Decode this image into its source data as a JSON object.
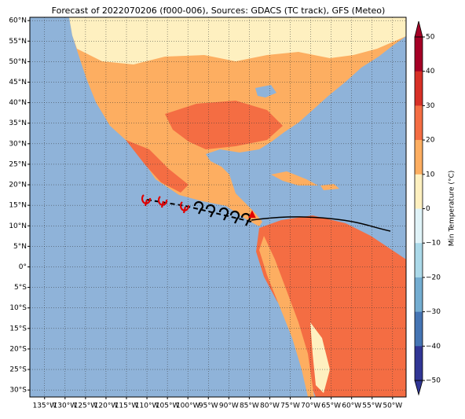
{
  "title": "Forecast of 2022070206 (f000-006), Sources: GDACS (TC track), GFS (Meteo)",
  "map": {
    "xlim": [
      -138.6,
      -46.7
    ],
    "ylim": [
      -31.7,
      60.8
    ],
    "yticks": [
      {
        "value": 60,
        "label": "60°N"
      },
      {
        "value": 55,
        "label": "55°N"
      },
      {
        "value": 50,
        "label": "50°N"
      },
      {
        "value": 45,
        "label": "45°N"
      },
      {
        "value": 40,
        "label": "40°N"
      },
      {
        "value": 35,
        "label": "35°N"
      },
      {
        "value": 30,
        "label": "30°N"
      },
      {
        "value": 25,
        "label": "25°N"
      },
      {
        "value": 20,
        "label": "20°N"
      },
      {
        "value": 15,
        "label": "15°N"
      },
      {
        "value": 10,
        "label": "10°N"
      },
      {
        "value": 5,
        "label": "5°N"
      },
      {
        "value": 0,
        "label": "0°"
      },
      {
        "value": -5,
        "label": "5°S"
      },
      {
        "value": -10,
        "label": "10°S"
      },
      {
        "value": -15,
        "label": "15°S"
      },
      {
        "value": -20,
        "label": "20°S"
      },
      {
        "value": -25,
        "label": "25°S"
      },
      {
        "value": -30,
        "label": "30°S"
      }
    ],
    "xticks": [
      {
        "value": -135,
        "label": "135°W"
      },
      {
        "value": -130,
        "label": "130°W"
      },
      {
        "value": -125,
        "label": "125°W"
      },
      {
        "value": -120,
        "label": "120°W"
      },
      {
        "value": -115,
        "label": "115°W"
      },
      {
        "value": -110,
        "label": "110°W"
      },
      {
        "value": -105,
        "label": "105°W"
      },
      {
        "value": -100,
        "label": "100°W"
      },
      {
        "value": -95,
        "label": "95°W"
      },
      {
        "value": -90,
        "label": "90°W"
      },
      {
        "value": -85,
        "label": "85°W"
      },
      {
        "value": -80,
        "label": "80°W"
      },
      {
        "value": -75,
        "label": "75°W"
      },
      {
        "value": -70,
        "label": "70°W"
      },
      {
        "value": -65,
        "label": "65°W"
      },
      {
        "value": -60,
        "label": "60°W"
      },
      {
        "value": -55,
        "label": "55°W"
      },
      {
        "value": -50,
        "label": "50°W"
      }
    ],
    "grid": true
  },
  "colorbar": {
    "label": "Min Temperature (°C)",
    "ylim": [
      -50,
      50
    ],
    "ticks": [
      {
        "value": 50,
        "label": "50"
      },
      {
        "value": 40,
        "label": "40"
      },
      {
        "value": 30,
        "label": "30"
      },
      {
        "value": 20,
        "label": "20"
      },
      {
        "value": 10,
        "label": "10"
      },
      {
        "value": 0,
        "label": "0"
      },
      {
        "value": -10,
        "label": "−10"
      },
      {
        "value": -20,
        "label": "−20"
      },
      {
        "value": -30,
        "label": "−30"
      },
      {
        "value": -40,
        "label": "−40"
      },
      {
        "value": -50,
        "label": "−50"
      }
    ],
    "colors": [
      "#a50026",
      "#d73027",
      "#f46d43",
      "#fdae61",
      "#fef0c0",
      "#e0f3f8",
      "#abd9e9",
      "#74add1",
      "#4575b4",
      "#313695"
    ]
  }
}
